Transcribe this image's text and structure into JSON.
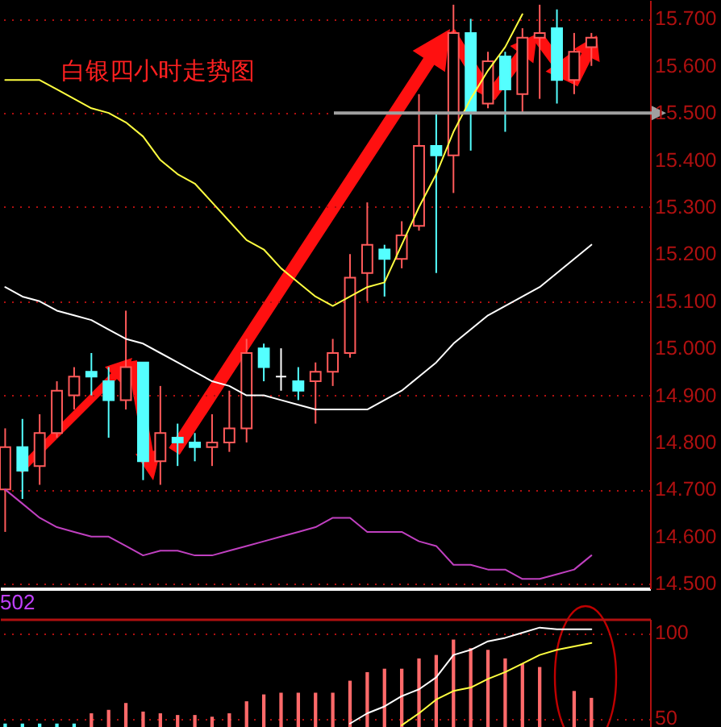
{
  "chart_data": [
    {
      "type": "candlestick",
      "title": "白银四小时走势图",
      "categories": [
        null,
        null,
        null,
        null,
        null,
        null,
        null,
        null,
        null,
        null,
        null,
        null,
        null,
        null,
        null,
        null,
        null,
        null,
        null,
        null,
        null,
        null,
        null,
        null,
        null,
        null,
        null,
        null,
        null,
        null,
        null,
        null,
        null,
        null,
        null
      ],
      "ohlc": [
        [
          14.7,
          14.83,
          14.61,
          14.79
        ],
        [
          14.79,
          14.85,
          14.68,
          14.74
        ],
        [
          14.75,
          14.86,
          14.71,
          14.82
        ],
        [
          14.82,
          14.93,
          14.81,
          14.91
        ],
        [
          14.9,
          14.96,
          14.87,
          14.94
        ],
        [
          14.95,
          14.99,
          14.9,
          14.94
        ],
        [
          14.93,
          14.96,
          14.81,
          14.89
        ],
        [
          14.89,
          15.08,
          14.87,
          14.96
        ],
        [
          14.97,
          14.97,
          14.72,
          14.76
        ],
        [
          14.76,
          14.92,
          14.71,
          14.82
        ],
        [
          14.81,
          14.84,
          14.75,
          14.8
        ],
        [
          14.8,
          14.82,
          14.76,
          14.79
        ],
        [
          14.79,
          14.86,
          14.75,
          14.8
        ],
        [
          14.8,
          14.91,
          14.78,
          14.83
        ],
        [
          14.83,
          15.02,
          14.8,
          14.99
        ],
        [
          15.0,
          15.01,
          14.93,
          14.96
        ],
        [
          14.94,
          15.0,
          14.91,
          14.94
        ],
        [
          14.93,
          14.96,
          14.89,
          14.91
        ],
        [
          14.93,
          14.97,
          14.84,
          14.95
        ],
        [
          14.95,
          15.02,
          14.92,
          14.99
        ],
        [
          14.99,
          15.2,
          14.98,
          15.15
        ],
        [
          15.16,
          15.31,
          15.1,
          15.22
        ],
        [
          15.21,
          15.22,
          15.11,
          15.19
        ],
        [
          15.19,
          15.27,
          15.17,
          15.24
        ],
        [
          15.26,
          15.54,
          15.25,
          15.43
        ],
        [
          15.43,
          15.5,
          15.16,
          15.41
        ],
        [
          15.41,
          15.73,
          15.33,
          15.67
        ],
        [
          15.67,
          15.7,
          15.42,
          15.5
        ],
        [
          15.52,
          15.63,
          15.51,
          15.61
        ],
        [
          15.62,
          15.63,
          15.46,
          15.55
        ],
        [
          15.54,
          15.68,
          15.5,
          15.66
        ],
        [
          15.66,
          15.73,
          15.53,
          15.67
        ],
        [
          15.68,
          15.72,
          15.52,
          15.57
        ],
        [
          15.57,
          15.67,
          15.54,
          15.63
        ],
        [
          15.64,
          15.67,
          15.6,
          15.66
        ]
      ],
      "colors": [
        "#ff5a5a",
        "#54ffff",
        "#ff5a5a",
        "#ff5a5a",
        "#ff5a5a",
        "#54ffff",
        "#54ffff",
        "#ff5a5a",
        "#54ffff",
        "#ff5a5a",
        "#54ffff",
        "#54ffff",
        "#ff5a5a",
        "#ff5a5a",
        "#ff5a5a",
        "#54ffff",
        "#ffffff",
        "#54ffff",
        "#ff5a5a",
        "#ff5a5a",
        "#ff5a5a",
        "#ff5a5a",
        "#54ffff",
        "#ff5a5a",
        "#ff5a5a",
        "#54ffff",
        "#ff5a5a",
        "#54ffff",
        "#ff5a5a",
        "#54ffff",
        "#ff5a5a",
        "#ff5a5a",
        "#54ffff",
        "#ff5a5a",
        "#ff5a5a"
      ],
      "series": [
        {
          "type": "line",
          "color": "#ffff40",
          "values": [
            15.57,
            15.57,
            15.57,
            15.55,
            15.53,
            15.51,
            15.5,
            15.48,
            15.45,
            15.4,
            15.37,
            15.35,
            15.31,
            15.27,
            15.23,
            15.21,
            15.17,
            15.14,
            15.11,
            15.09,
            15.11,
            15.13,
            15.14,
            15.22,
            15.3,
            15.37,
            15.46,
            15.53,
            15.59,
            15.64,
            15.71,
            null,
            null,
            null,
            null
          ]
        },
        {
          "type": "line",
          "color": "#ffffff",
          "values": [
            15.13,
            15.11,
            15.1,
            15.08,
            15.07,
            15.06,
            15.04,
            15.02,
            15.01,
            14.99,
            14.97,
            14.95,
            14.93,
            14.92,
            14.9,
            14.9,
            14.89,
            14.88,
            14.87,
            14.87,
            14.87,
            14.87,
            14.89,
            14.91,
            14.94,
            14.97,
            15.01,
            15.04,
            15.07,
            15.09,
            15.11,
            15.13,
            15.16,
            15.19,
            15.22
          ]
        },
        {
          "type": "line",
          "color": "#c040c0",
          "values": [
            14.7,
            14.67,
            14.64,
            14.62,
            14.61,
            14.6,
            14.6,
            14.58,
            14.56,
            14.57,
            14.57,
            14.56,
            14.56,
            14.57,
            14.58,
            14.59,
            14.6,
            14.61,
            14.62,
            14.64,
            14.64,
            14.61,
            14.61,
            14.61,
            14.59,
            14.58,
            14.54,
            14.54,
            14.53,
            14.53,
            14.51,
            14.51,
            14.52,
            14.53,
            14.56
          ]
        }
      ],
      "ylim": [
        14.49,
        15.74
      ],
      "yticks": [
        {
          "value": 14.5,
          "label": "14.500"
        },
        {
          "value": 14.6,
          "label": "14.600"
        },
        {
          "value": 14.7,
          "label": "14.700"
        },
        {
          "value": 14.8,
          "label": "14.800"
        },
        {
          "value": 14.9,
          "label": "14.900"
        },
        {
          "value": 15.0,
          "label": "15.000"
        },
        {
          "value": 15.1,
          "label": "15.100"
        },
        {
          "value": 15.2,
          "label": "15.200"
        },
        {
          "value": 15.3,
          "label": "15.300"
        },
        {
          "value": 15.4,
          "label": "15.400"
        },
        {
          "value": 15.5,
          "label": "15.500"
        },
        {
          "value": 15.6,
          "label": "15.600"
        },
        {
          "value": 15.7,
          "label": "15.700"
        }
      ],
      "ref_lines": [
        {
          "axis": "y",
          "value": 15.5,
          "color": "#a0a0a0"
        }
      ],
      "grid": "y",
      "tick_labels": "y"
    },
    {
      "type": "bar",
      "categories": [
        null,
        null,
        null,
        null,
        null,
        null,
        null,
        null,
        null,
        null,
        null,
        null,
        null,
        null,
        null,
        null,
        null,
        null,
        null,
        null,
        null,
        null,
        null,
        null,
        null,
        null,
        null,
        null,
        null,
        null,
        null,
        null,
        null,
        null,
        null
      ],
      "series": [
        {
          "type": "bar",
          "colors": [
            "#54ffff",
            "#54ffff",
            "#54ffff",
            "#54ffff",
            "#54ffff",
            "#ff6a6a",
            "#ff6a6a",
            "#ff6a6a",
            "#ff6a6a",
            "#ff6a6a",
            "#ff6a6a",
            "#ff6a6a",
            "#ff6a6a",
            "#ff6a6a",
            "#ff6a6a",
            "#ff6a6a",
            "#ff6a6a",
            "#ff6a6a",
            "#ff6a6a",
            "#ff6a6a",
            "#ff6a6a",
            "#ff6a6a",
            "#ff6a6a",
            "#ff6a6a",
            "#ff6a6a",
            "#ff6a6a",
            "#ff6a6a",
            "#ff6a6a",
            "#ff6a6a",
            "#ff6a6a",
            "#ff6a6a",
            "#ff6a6a",
            "#ff6a6a",
            "#ff6a6a",
            "#ff6a6a"
          ],
          "values": [
            47,
            47,
            47,
            47,
            47,
            53,
            55,
            59,
            54,
            53,
            52,
            52,
            51,
            53,
            60,
            64,
            65,
            65,
            65,
            65,
            72,
            77,
            79,
            79,
            85,
            87,
            96,
            91,
            90,
            85,
            82,
            80,
            null,
            66,
            62
          ]
        },
        {
          "type": "line",
          "color": "#ffffff",
          "values": [
            null,
            null,
            null,
            null,
            null,
            null,
            null,
            null,
            null,
            null,
            null,
            null,
            null,
            null,
            null,
            null,
            null,
            null,
            null,
            null,
            47,
            53,
            57,
            63,
            67,
            74,
            87,
            90,
            95,
            97,
            100,
            103,
            102,
            102,
            102
          ]
        },
        {
          "type": "line",
          "color": "#ffff40",
          "values": [
            null,
            null,
            null,
            null,
            null,
            null,
            null,
            null,
            null,
            null,
            null,
            null,
            null,
            null,
            null,
            null,
            null,
            null,
            null,
            null,
            null,
            null,
            null,
            46,
            53,
            61,
            66,
            68,
            73,
            77,
            82,
            87,
            90,
            92,
            94
          ]
        }
      ],
      "ylim": [
        45,
        108
      ],
      "yticks": [
        50,
        100
      ],
      "grid": "y",
      "tick_labels": "y",
      "annotations": [
        "502"
      ]
    }
  ]
}
